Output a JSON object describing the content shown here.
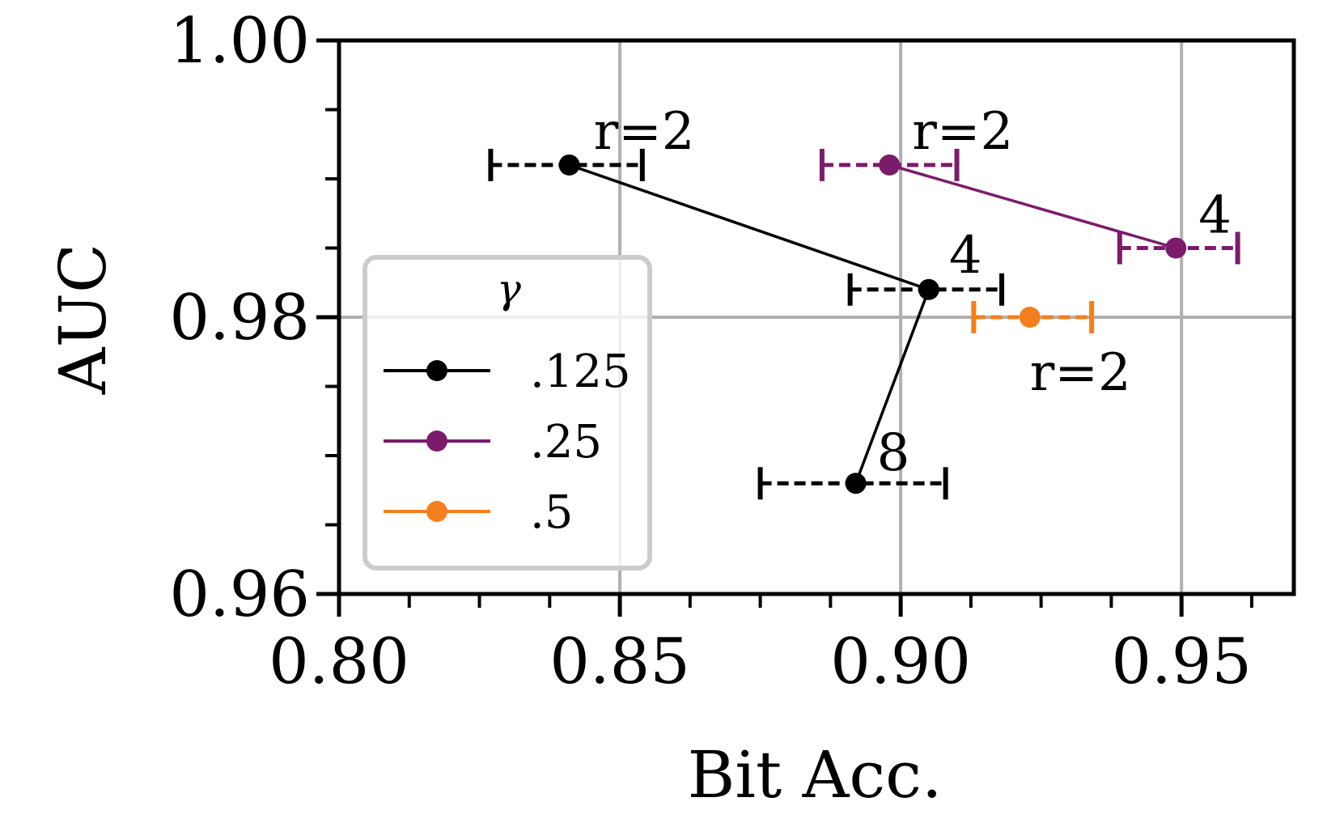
{
  "chart_data": {
    "type": "scatter",
    "title": "",
    "xlabel": "Bit Acc.",
    "ylabel": "AUC",
    "xlim": [
      0.8,
      0.97
    ],
    "ylim": [
      0.96,
      1.0
    ],
    "xticks": [
      0.8,
      0.85,
      0.9,
      0.95
    ],
    "xtick_labels": [
      "0.80",
      "0.85",
      "0.90",
      "0.95"
    ],
    "yticks": [
      0.96,
      0.98,
      1.0
    ],
    "ytick_labels": [
      "0.96",
      "0.98",
      "1.00"
    ],
    "x_minor_step": 0.0125,
    "y_minor_step": 0.005,
    "grid": true,
    "legend": {
      "title": "γ",
      "placement": "center-left"
    },
    "series": [
      {
        "name": ".125",
        "color": "#000000",
        "points": [
          {
            "x": 0.841,
            "y": 0.991,
            "xerr_low": 0.827,
            "xerr_high": 0.854,
            "label": "r=2"
          },
          {
            "x": 0.905,
            "y": 0.982,
            "xerr_low": 0.891,
            "xerr_high": 0.918,
            "label": "4"
          },
          {
            "x": 0.892,
            "y": 0.968,
            "xerr_low": 0.875,
            "xerr_high": 0.908,
            "label": "8"
          }
        ]
      },
      {
        "name": ".25",
        "color": "#7b1c6b",
        "points": [
          {
            "x": 0.898,
            "y": 0.991,
            "xerr_low": 0.886,
            "xerr_high": 0.91,
            "label": "r=2"
          },
          {
            "x": 0.949,
            "y": 0.985,
            "xerr_low": 0.939,
            "xerr_high": 0.96,
            "label": "4"
          }
        ]
      },
      {
        "name": ".5",
        "color": "#f47f1e",
        "points": [
          {
            "x": 0.923,
            "y": 0.98,
            "xerr_low": 0.913,
            "xerr_high": 0.934,
            "label": "r=2"
          }
        ]
      }
    ]
  }
}
